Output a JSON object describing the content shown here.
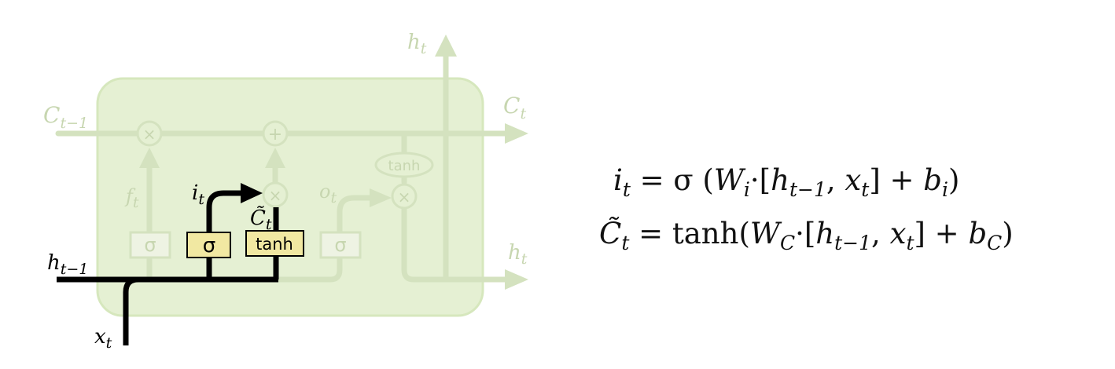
{
  "diagram": {
    "labels": {
      "c_prev": "C",
      "c_prev_sub": "t−1",
      "c_next": "C",
      "c_next_sub": "t",
      "h_top": "h",
      "h_top_sub": "t",
      "h_right": "h",
      "h_right_sub": "t",
      "h_prev": "h",
      "h_prev_sub": "t−1",
      "x_in": "x",
      "x_in_sub": "t",
      "f_gate": "f",
      "f_gate_sub": "t",
      "i_gate": "i",
      "i_gate_sub": "t",
      "c_tilde": "C̃",
      "c_tilde_sub": "t",
      "o_gate": "o",
      "o_gate_sub": "t"
    },
    "ops": {
      "multiply": "×",
      "add": "+",
      "tanh": "tanh"
    },
    "boxes": {
      "forget_sigma": "σ",
      "input_sigma": "σ",
      "candidate_tanh": "tanh",
      "output_sigma": "σ"
    },
    "colors": {
      "cell_fill": "#e5f0d3",
      "cell_stroke": "#d6e7bd",
      "faded_line": "#d4e2bf",
      "faded_text": "#c7d6b0",
      "active_line": "#000000",
      "box_fill": "#f1e8a2",
      "faded_box_fill": "#eef3e3"
    }
  },
  "equations": {
    "eq1": {
      "lhs": "i",
      "lhs_sub": "t",
      "eq": " = σ (",
      "w": "W",
      "w_sub": "i",
      "dot": "·[",
      "h": "h",
      "h_sub": "t−1",
      "comma": ", ",
      "x": "x",
      "x_sub": "t",
      "close": "]  +  ",
      "b": "b",
      "b_sub": "i",
      "end": ")"
    },
    "eq2": {
      "lhs": "C̃",
      "lhs_sub": "t",
      "eq": " = tanh(",
      "w": "W",
      "w_sub": "C",
      "dot": "·[",
      "h": "h",
      "h_sub": "t−1",
      "comma": ", ",
      "x": "x",
      "x_sub": "t",
      "close": "]  +  ",
      "b": "b",
      "b_sub": "C",
      "end": ")"
    }
  }
}
